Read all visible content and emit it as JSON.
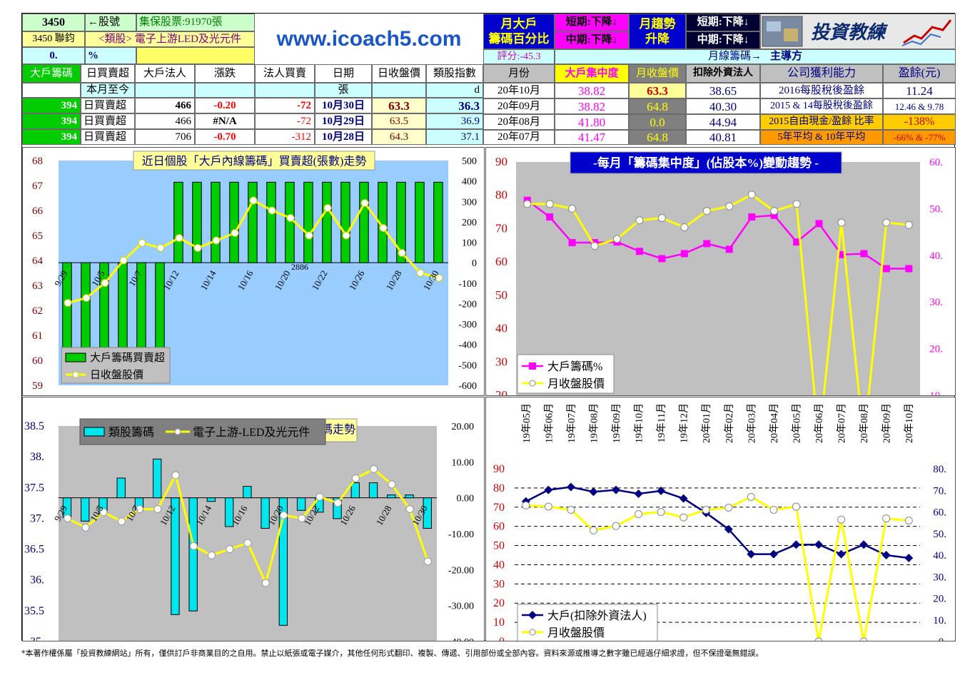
{
  "header": {
    "stock_no": "3450",
    "stock_no_label": "←股號",
    "custody": "集保股票:91970張",
    "stock_name": "3450 聯鈞",
    "industry": "<類股> 電子上游LED及光元件",
    "zero": "0.",
    "percent": "%",
    "site": "www.icoach5.com",
    "big_month_1": "月大戶",
    "big_month_2": "籌碼百分比",
    "short1": "短期:下降↓",
    "mid1": "中期:下降↓",
    "month_trend_1": "月趨勢",
    "month_trend_2": "升降",
    "short2": "短期:下降↓",
    "mid2": "中期:下降↓",
    "logo_text": "投資教練",
    "score": "評分:-45.3",
    "month_line": "月線籌碼→",
    "leader": "主導方"
  },
  "daily_table": {
    "headers": [
      "大戶籌碼",
      "日買賣超",
      "大戶法人",
      "漲跌",
      "法人買賣",
      "日期",
      "日收盤價",
      "類股指數"
    ],
    "unit_row": [
      "",
      "本月至今",
      "",
      "",
      "",
      "張",
      "",
      "d"
    ],
    "rows": [
      [
        "394",
        "日買賣超",
        "466",
        "-0.20",
        "-72",
        "10月30日",
        "63.3",
        "36.3"
      ],
      [
        "394",
        "日買賣超",
        "466",
        "#N/A",
        "-72",
        "10月29日",
        "63.5",
        "36.9"
      ],
      [
        "394",
        "日買賣超",
        "706",
        "-0.70",
        "-312",
        "10月28日",
        "64.3",
        "37.1"
      ]
    ]
  },
  "monthly_table": {
    "headers": [
      "月份",
      "大戶集中度",
      "月收盤價",
      "扣除外資法人"
    ],
    "rows": [
      [
        "20年10月",
        "38.82",
        "63.3",
        "38.65"
      ],
      [
        "20年09月",
        "38.82",
        "64.8",
        "40.30"
      ],
      [
        "20年08月",
        "41.80",
        "0.0",
        "44.94"
      ],
      [
        "20年07月",
        "41.47",
        "64.8",
        "40.81"
      ]
    ]
  },
  "profit_table": {
    "headers": [
      "公司獲利能力",
      "盈餘(元)"
    ],
    "rows": [
      [
        "2016每股稅後盈餘",
        "11.24"
      ],
      [
        "2015 & 14每股稅後盈餘",
        "12.46 & 9.78"
      ],
      [
        "2015自由現金/盈餘 比率",
        "-138%"
      ],
      [
        "5年平均 & 10年平均",
        "-66% & -77%"
      ]
    ]
  },
  "colors": {
    "green": "#00cc00",
    "cyan": "#00e5ee",
    "magenta": "#ff00ff",
    "yellow": "#ffff00",
    "navy": "#000080",
    "panel_blue": "#99ccff",
    "panel_gray": "#c0c0c0"
  },
  "footer": "*本著作權係屬「投資教練網站」所有，僅供訂戶非商業目的之自用。禁止以紙張或電子媒介，其他任何形式翻印、複製、傳遞、引用部份或全部內容。資料來源或推導之數字雖已經過仔細求證，但不保證毫無錯誤。",
  "chart_data": [
    {
      "type": "bar",
      "title": "近日個股「大戶內線籌碼」買賣超(張數)走勢",
      "categories": [
        "9/29",
        "9/30",
        "10/5",
        "10/6",
        "10/7",
        "10/8",
        "10/12",
        "10/13",
        "10/14",
        "10/15",
        "10/16",
        "10/19",
        "10/20",
        "10/21",
        "10/22",
        "10/23",
        "10/26",
        "10/27",
        "10/28",
        "10/29",
        "10/30"
      ],
      "tick_labels": [
        "9/29",
        "10/5",
        "10/7",
        "10/12",
        "10/14",
        "10/16",
        "10/20",
        "10/22",
        "10/26",
        "10/28",
        "10/30"
      ],
      "annotation": "2886",
      "series": [
        {
          "name": "大戶籌碼買賣超",
          "axis": "right",
          "values": [
            -520,
            -500,
            -470,
            -460,
            -430,
            -450,
            394,
            394,
            394,
            394,
            394,
            394,
            394,
            394,
            394,
            394,
            394,
            394,
            394,
            394,
            394
          ]
        },
        {
          "name": "日收盤股價",
          "axis": "left",
          "values": [
            62.3,
            62.5,
            63.1,
            64.0,
            64.7,
            64.5,
            64.9,
            64.5,
            64.8,
            65.1,
            66.4,
            66.0,
            65.7,
            65.0,
            66.1,
            65.0,
            66.3,
            65.3,
            64.3,
            63.5,
            63.3
          ]
        }
      ],
      "ylim_left": [
        59,
        68
      ],
      "ylim_right": [
        -600,
        500
      ],
      "y_ticks_left": [
        "68",
        "67",
        "66",
        "65",
        "64",
        "63",
        "62",
        "61",
        "60",
        "59"
      ],
      "y_ticks_right": [
        "500",
        "400",
        "300",
        "200",
        "100",
        "0",
        "-100",
        "-200",
        "-300",
        "-400",
        "-500",
        "-600"
      ]
    },
    {
      "type": "line",
      "title": "-每月「籌碼集中度」(佔股本%)變動趨勢 -",
      "series": [
        {
          "name": "大戶籌碼%",
          "axis": "left",
          "values": [
            78.5,
            73.5,
            65.8,
            65.8,
            66.0,
            63.2,
            61.0,
            62.5,
            65.5,
            63.8,
            73.5,
            74.0,
            66.0,
            71.5,
            62.2,
            62.5,
            58.0,
            58.0
          ]
        },
        {
          "name": "月收盤股價",
          "axis": "right",
          "values": [
            51.0,
            51.0,
            50.0,
            42.0,
            43.5,
            47.5,
            48.0,
            46.0,
            49.5,
            50.5,
            53.0,
            49.5,
            51.0,
            0,
            47.0,
            0,
            47.0,
            46.5
          ]
        }
      ],
      "ylim_left": [
        20,
        90
      ],
      "ylim_right": [
        10,
        60
      ],
      "y_ticks_left": [
        "90",
        "80",
        "70",
        "60",
        "50",
        "40",
        "30",
        "20"
      ],
      "y_ticks_right": [
        "60.",
        "50.",
        "40.",
        "30.",
        "20.",
        "10."
      ]
    },
    {
      "type": "bar",
      "title": "類股籌碼走勢",
      "categories": [
        "9/29",
        "9/30",
        "10/5",
        "10/6",
        "10/7",
        "10/8",
        "10/12",
        "10/13",
        "10/14",
        "10/15",
        "10/16",
        "10/19",
        "10/20",
        "10/21",
        "10/22",
        "10/23",
        "10/26",
        "10/27",
        "10/28",
        "10/29",
        "10/30"
      ],
      "tick_labels": [
        "9/29",
        "10/5",
        "10/7",
        "10/12",
        "10/14",
        "10/16",
        "10/20",
        "10/22",
        "10/26",
        "10/28",
        "10/30"
      ],
      "series": [
        {
          "name": "類股籌碼",
          "axis": "right",
          "values": [
            -5.5,
            -6.5,
            -4.5,
            5.5,
            -3.5,
            10.8,
            -32.5,
            -31.5,
            -1.0,
            -8.0,
            3.2,
            -8.5,
            -35.5,
            -3.5,
            -4.0,
            -5.8,
            4.2,
            4.2,
            0.8,
            0.8,
            -8.5
          ]
        },
        {
          "name": "電子上游-LED及光元件",
          "axis": "left",
          "values": [
            37.0,
            36.85,
            37.1,
            36.95,
            37.15,
            37.15,
            37.7,
            36.55,
            36.4,
            36.5,
            36.6,
            35.95,
            37.05,
            37.0,
            37.35,
            37.25,
            37.65,
            37.8,
            37.55,
            37.15,
            36.3
          ]
        }
      ],
      "ylim_left": [
        35,
        38.5
      ],
      "ylim_right": [
        -40,
        20
      ],
      "y_ticks_left": [
        "38.5",
        "38.",
        "37.5",
        "37.",
        "36.5",
        "36.",
        "35.5",
        "35."
      ],
      "y_ticks_right": [
        "20.00",
        "10.00",
        "0.00",
        "-10.00",
        "-20.00",
        "-30.00",
        "-40.00"
      ]
    },
    {
      "type": "line",
      "categories": [
        "19年05月",
        "19年06月",
        "19年07月",
        "19年08月",
        "19年09月",
        "19年10月",
        "19年11月",
        "19年12月",
        "20年01月",
        "20年02月",
        "20年03月",
        "20年04月",
        "20年05月",
        "20年06月",
        "20年07月",
        "20年08月",
        "20年09月",
        "20年10月"
      ],
      "series": [
        {
          "name": "大戶(扣除外資法人)",
          "axis": "left",
          "values": [
            73.0,
            79.0,
            80.5,
            78.0,
            79.0,
            77.0,
            78.5,
            74.5,
            67.0,
            58.5,
            45.5,
            45.5,
            50.5,
            50.5,
            45.5,
            50.5,
            45.0,
            43.5
          ]
        },
        {
          "name": "月收盤股價",
          "axis": "right",
          "values": [
            63.0,
            62.5,
            61.0,
            51.5,
            53.5,
            59.0,
            60.0,
            57.5,
            61.0,
            62.0,
            67.0,
            61.0,
            62.5,
            0,
            56.5,
            0,
            57.0,
            56.0
          ]
        }
      ],
      "ylim_left": [
        0,
        90
      ],
      "ylim_right": [
        0,
        80
      ],
      "y_ticks_left": [
        "90",
        "80",
        "70",
        "60",
        "50",
        "40",
        "30",
        "20",
        "10",
        "0"
      ],
      "y_ticks_right": [
        "80.",
        "70.",
        "60.",
        "50.",
        "40.",
        "30.",
        "20.",
        "10.",
        "0."
      ]
    }
  ]
}
